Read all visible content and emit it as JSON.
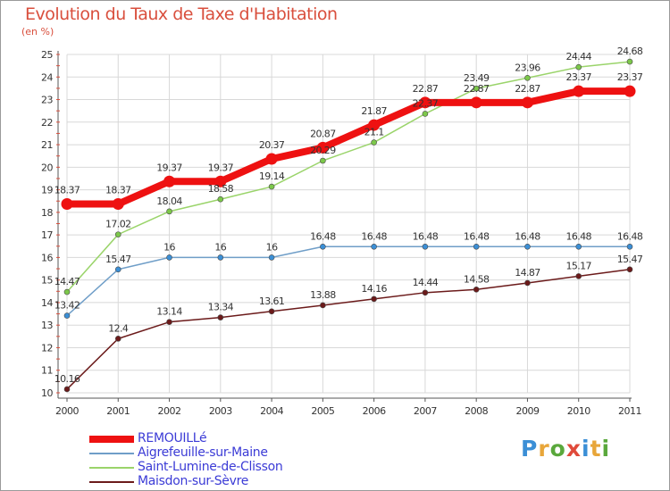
{
  "title": "Evolution du Taux de Taxe d'Habitation",
  "subtitle": "(en %)",
  "brand": {
    "letters": [
      "P",
      "r",
      "o",
      "x",
      "i",
      "t",
      "i"
    ],
    "colors": [
      "#3b8fd6",
      "#e8a63a",
      "#5aa83c",
      "#e04a3a",
      "#3b8fd6",
      "#e8a63a",
      "#5aa83c"
    ]
  },
  "chart_data": {
    "type": "line",
    "x": [
      "2000",
      "2001",
      "2002",
      "2003",
      "2004",
      "2005",
      "2006",
      "2007",
      "2008",
      "2009",
      "2010",
      "2011"
    ],
    "ylim": [
      10,
      25
    ],
    "yticks": [
      "10",
      "11",
      "12",
      "13",
      "14",
      "15",
      "16",
      "17",
      "18",
      "19",
      "20",
      "21",
      "22",
      "23",
      "24",
      "25"
    ],
    "grid": true,
    "legend": "bottom-left",
    "series": [
      {
        "name": "Maisdon-sur-Sèvre",
        "color": "#6b1a1a",
        "dot": "#6b1a1a",
        "width": 1.5,
        "radius": 3,
        "values": [
          10.16,
          12.4,
          13.14,
          13.34,
          13.61,
          13.88,
          14.16,
          14.44,
          14.58,
          14.87,
          15.17,
          15.47
        ],
        "labels": [
          "10.16",
          "12.4",
          "13.14",
          "13.34",
          "13.61",
          "13.88",
          "14.16",
          "14.44",
          "14.58",
          "14.87",
          "15.17",
          "15.47"
        ]
      },
      {
        "name": "Aigrefeuille-sur-Maine",
        "color": "#6f9ec8",
        "dot": "#3b8fd6",
        "width": 1.5,
        "radius": 3,
        "values": [
          13.42,
          15.47,
          16,
          16,
          16,
          16.48,
          16.48,
          16.48,
          16.48,
          16.48,
          16.48,
          16.48
        ],
        "labels": [
          "13.42",
          "15.47",
          "16",
          "16",
          "16",
          "16.48",
          "16.48",
          "16.48",
          "16.48",
          "16.48",
          "16.48",
          "16.48"
        ]
      },
      {
        "name": "Saint-Lumine-de-Clisson",
        "color": "#9ad46a",
        "dot": "#7cc84a",
        "width": 1.5,
        "radius": 3,
        "values": [
          14.47,
          17.02,
          18.04,
          18.58,
          19.14,
          20.29,
          21.1,
          22.37,
          23.49,
          23.96,
          24.44,
          24.68
        ],
        "labels": [
          "14.47",
          "17.02",
          "18.04",
          "18.58",
          "19.14",
          "20.29",
          "21.1",
          "22.37",
          "23.49",
          "23.96",
          "24.44",
          "24.68"
        ]
      },
      {
        "name": "REMOUILLé",
        "color": "#ee1111",
        "dot": "#ee1111",
        "width": 8,
        "radius": 6.5,
        "values": [
          18.37,
          18.37,
          19.37,
          19.37,
          20.37,
          20.87,
          21.87,
          22.87,
          22.87,
          22.87,
          23.37,
          23.37
        ],
        "labels": [
          "18.37",
          "18.37",
          "19.37",
          "19.37",
          "20.37",
          "20.87",
          "21.87",
          "22.87",
          "22.87",
          "22.87",
          "23.37",
          "23.37"
        ]
      }
    ]
  }
}
